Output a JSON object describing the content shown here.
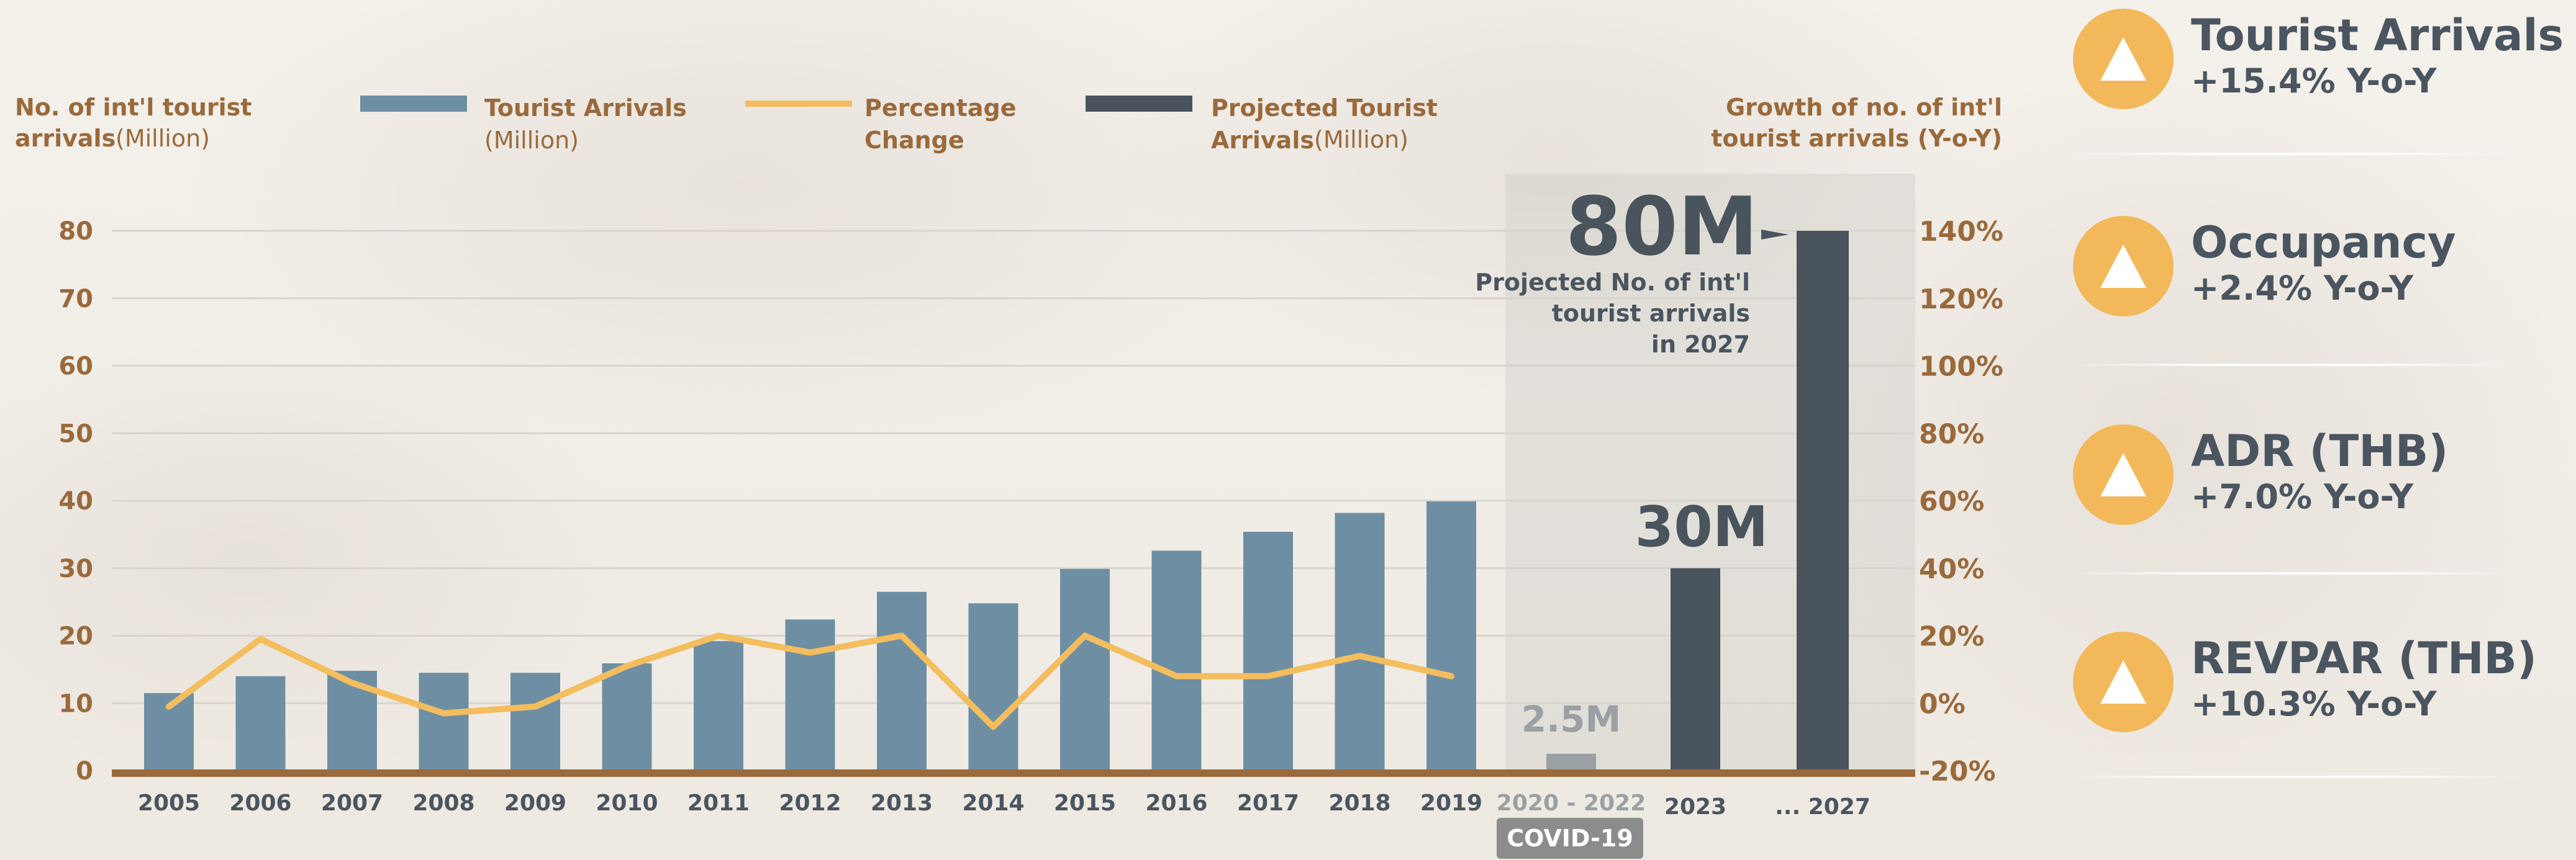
{
  "legend": {
    "left_axis_title_bold": "No. of int'l tourist arrivals",
    "left_axis_title_unit": "(Million)",
    "items": [
      {
        "label": "Tourist Arrivals",
        "unit": "(Million)",
        "color": "#6e8fa3"
      },
      {
        "label": "Percentage Change",
        "unit": "",
        "color": "#f4bd5d"
      },
      {
        "label": "Projected Tourist Arrivals",
        "unit": "(Million)",
        "color": "#4a545d"
      }
    ],
    "right_axis_title": "Growth of no. of int'l tourist arrivals (Y-o-Y)"
  },
  "chart_data": {
    "type": "bar",
    "categories": [
      "2005",
      "2006",
      "2007",
      "2008",
      "2009",
      "2010",
      "2011",
      "2012",
      "2013",
      "2014",
      "2015",
      "2016",
      "2017",
      "2018",
      "2019"
    ],
    "series": [
      {
        "name": "Tourist Arrivals (Million)",
        "type": "bar",
        "axis": "left",
        "values": [
          11.5,
          14,
          14.8,
          14.5,
          14.5,
          15.9,
          19.2,
          22.4,
          26.5,
          24.8,
          29.9,
          32.6,
          35.4,
          38.2,
          39.9
        ]
      },
      {
        "name": "Percentage Change",
        "type": "line",
        "axis": "right",
        "values": [
          -1,
          19,
          6,
          -3,
          -1,
          11,
          20,
          15,
          20,
          -7,
          20,
          8,
          8,
          14,
          8
        ]
      }
    ],
    "projected": {
      "categories": [
        "2020 - 2022",
        "2023",
        "... 2027"
      ],
      "values": [
        2.5,
        30,
        80
      ],
      "labels": [
        "2.5M",
        "30M",
        "80M"
      ],
      "colors": [
        "#9aa0a3",
        "#4a545d",
        "#4a545d"
      ]
    },
    "left_axis": {
      "ylim": [
        0,
        80
      ],
      "ticks": [
        "0",
        "10",
        "20",
        "30",
        "40",
        "50",
        "60",
        "70",
        "80"
      ]
    },
    "right_axis": {
      "ylim": [
        -20,
        140
      ],
      "ticks": [
        "-20%",
        "0%",
        "20%",
        "40%",
        "60%",
        "80%",
        "100%",
        "120%",
        "140%"
      ]
    },
    "annotation": "Projected No. of int'l tourist arrivals in 2027",
    "covid_label": "COVID-19",
    "grid": true
  },
  "kpis": [
    {
      "title": "Tourist Arrivals",
      "change": "+15.4% Y-o-Y",
      "icon": "triangle-up-icon"
    },
    {
      "title": "Occupancy",
      "change": "+2.4% Y-o-Y",
      "icon": "triangle-up-icon"
    },
    {
      "title": "ADR (THB)",
      "change": "+7.0% Y-o-Y",
      "icon": "triangle-up-icon"
    },
    {
      "title": "REVPAR (THB)",
      "change": "+10.3% Y-o-Y",
      "icon": "triangle-up-icon"
    }
  ]
}
